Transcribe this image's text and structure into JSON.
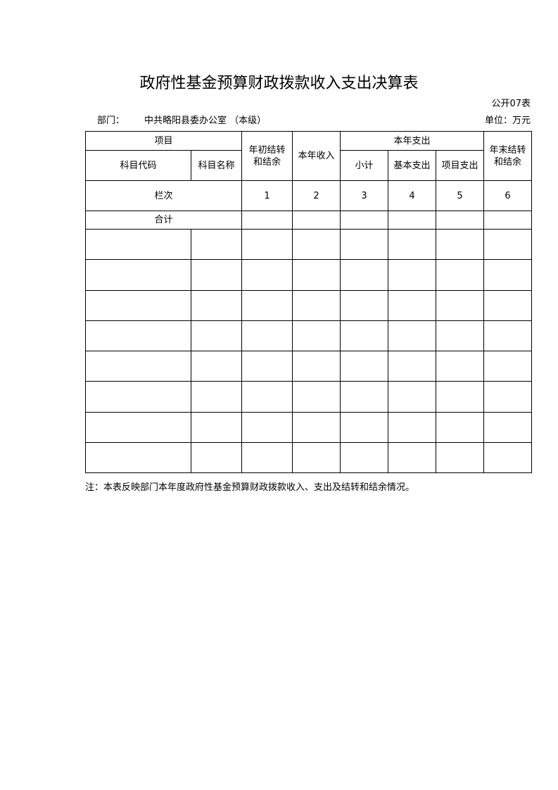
{
  "title": "政府性基金预算财政拨款收入支出决算表",
  "form_no": "公开07表",
  "department_label": "部门：",
  "department_value": "中共略阳县委办公室 （本级）",
  "unit": "单位：万元",
  "table": {
    "headers": {
      "item": "项目",
      "code": "科目代码",
      "name": "科目名称",
      "begin_balance": "年初结转和结余",
      "income": "本年收入",
      "expense": "本年支出",
      "subtotal": "小计",
      "basic": "基本支出",
      "project": "项目支出",
      "end_balance": "年末结转和结余"
    },
    "column_index_label": "栏次",
    "column_index": [
      "1",
      "2",
      "3",
      "4",
      "5",
      "6"
    ],
    "total_label": "合计",
    "empty_rows": 8
  },
  "note": "注：本表反映部门本年度政府性基金预算财政拨款收入、支出及结转和结余情况。"
}
